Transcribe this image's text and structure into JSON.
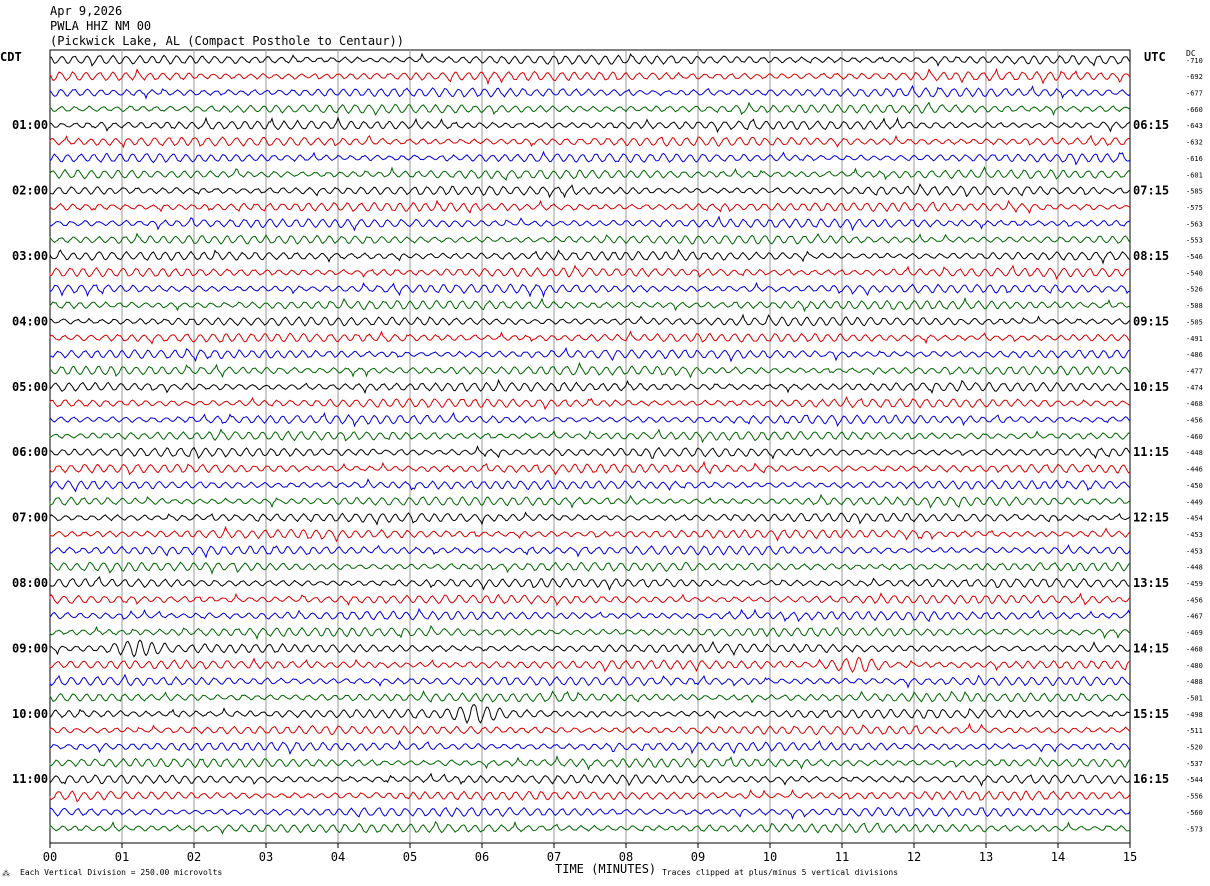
{
  "header": {
    "date": "Apr 9,2026",
    "station": "PWLA HHZ NM 00",
    "location": "(Pickwick Lake, AL (Compact Posthole to Centaur))"
  },
  "left_tz": "CDT",
  "right_tz": "UTC",
  "dc_label": "DC",
  "footer": {
    "scale_note": "Each Vertical Division =  250.00 microvolts",
    "xlabel": "TIME (MINUTES)",
    "clip_note": "Traces clipped at plus/minus 5 vertical divisions"
  },
  "colors": {
    "trace_cycle": [
      "#000000",
      "#dd0000",
      "#0000dd",
      "#006600"
    ],
    "grid": "#999999"
  },
  "chart_data": {
    "type": "line",
    "title": "PWLA HHZ NM 00",
    "xlabel": "TIME (MINUTES)",
    "xlim": [
      0,
      15
    ],
    "x_ticks": [
      "00",
      "01",
      "02",
      "03",
      "04",
      "05",
      "06",
      "07",
      "08",
      "09",
      "10",
      "11",
      "12",
      "13",
      "14",
      "15"
    ],
    "left_hour_labels": [
      "01:00",
      "02:00",
      "03:00",
      "04:00",
      "05:00",
      "06:00",
      "07:00",
      "08:00",
      "09:00",
      "10:00",
      "11:00"
    ],
    "right_hour_labels": [
      "06:15",
      "07:15",
      "08:15",
      "09:15",
      "10:15",
      "11:15",
      "12:15",
      "13:15",
      "14:15",
      "15:15",
      "16:15"
    ],
    "trace_dc_offsets": [
      "-710",
      "-692",
      "-677",
      "-660",
      "-643",
      "-632",
      "-616",
      "-601",
      "-585",
      "-575",
      "-563",
      "-553",
      "-546",
      "-540",
      "-526",
      "-508",
      "-505",
      "-491",
      "-486",
      "-477",
      "-474",
      "-468",
      "-456",
      "-460",
      "-448",
      "-446",
      "-450",
      "-449",
      "-454",
      "-453",
      "-453",
      "-448",
      "-459",
      "-456",
      "-467",
      "-469",
      "-468",
      "-480",
      "-488",
      "-501",
      "-498",
      "-511",
      "-520",
      "-537",
      "-544",
      "-556",
      "-560",
      "-573"
    ],
    "event_marks": [
      {
        "trace_index": 36,
        "minute": 1.2
      },
      {
        "trace_index": 37,
        "minute": 11.2
      },
      {
        "trace_index": 40,
        "minute": 5.9
      }
    ]
  }
}
